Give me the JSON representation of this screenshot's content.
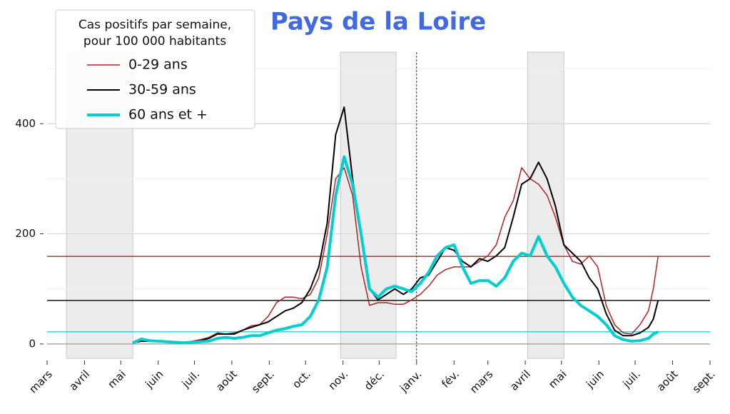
{
  "chart_data": {
    "type": "line",
    "title": "Pays de la Loire",
    "title_color": "#4169e1",
    "legend_title": [
      "Cas positifs par semaine,",
      "pour 100 000 habitants"
    ],
    "x": [
      71,
      78,
      85,
      92,
      99,
      106,
      113,
      120,
      127,
      134,
      141,
      148,
      155,
      162,
      169,
      176,
      183,
      190,
      197,
      204,
      211,
      218,
      225,
      232,
      239,
      246,
      253,
      260,
      267,
      274,
      281,
      288,
      295,
      302,
      309,
      316,
      323,
      330,
      337,
      344,
      351,
      358,
      365,
      372,
      379,
      386,
      393,
      400,
      407,
      414,
      421,
      428,
      435,
      442,
      449,
      456,
      463,
      470,
      477,
      484,
      491,
      498,
      502,
      506
    ],
    "series": [
      {
        "name": "0-29 ans",
        "color": "#b22222",
        "linewidth": 1.5,
        "values": [
          2,
          6,
          7,
          5,
          4,
          3,
          3,
          5,
          8,
          12,
          20,
          18,
          20,
          25,
          33,
          35,
          50,
          75,
          85,
          85,
          82,
          90,
          120,
          200,
          300,
          320,
          270,
          140,
          70,
          75,
          75,
          72,
          72,
          80,
          90,
          105,
          125,
          135,
          140,
          140,
          140,
          150,
          160,
          180,
          230,
          260,
          320,
          300,
          290,
          270,
          230,
          180,
          150,
          145,
          160,
          140,
          70,
          35,
          20,
          18,
          35,
          60,
          100,
          159
        ]
      },
      {
        "name": "30-59 ans",
        "color": "#000000",
        "linewidth": 2,
        "values": [
          2,
          5,
          5,
          4,
          4,
          3,
          2,
          4,
          6,
          10,
          18,
          18,
          18,
          25,
          30,
          35,
          40,
          50,
          60,
          65,
          75,
          100,
          140,
          220,
          380,
          430,
          300,
          200,
          100,
          80,
          90,
          100,
          90,
          100,
          120,
          125,
          150,
          175,
          170,
          150,
          140,
          155,
          150,
          160,
          175,
          230,
          290,
          300,
          330,
          300,
          250,
          180,
          165,
          150,
          120,
          100,
          55,
          25,
          15,
          15,
          20,
          30,
          45,
          79
        ]
      },
      {
        "name": "60 ans et +",
        "color": "#00ced1",
        "linewidth": 4,
        "values": [
          2,
          9,
          6,
          5,
          4,
          3,
          2,
          3,
          4,
          5,
          10,
          12,
          10,
          12,
          15,
          15,
          20,
          25,
          28,
          32,
          35,
          50,
          80,
          140,
          270,
          340,
          290,
          200,
          100,
          85,
          100,
          105,
          100,
          95,
          110,
          130,
          160,
          175,
          180,
          140,
          110,
          115,
          115,
          105,
          120,
          150,
          165,
          160,
          195,
          160,
          140,
          110,
          85,
          70,
          60,
          50,
          35,
          15,
          8,
          5,
          6,
          10,
          18,
          22
        ]
      }
    ],
    "xlim": [
      0,
      549
    ],
    "xticks": [
      {
        "value": 0,
        "label": "mars"
      },
      {
        "value": 31,
        "label": "avril"
      },
      {
        "value": 61,
        "label": "mai"
      },
      {
        "value": 92,
        "label": "juin"
      },
      {
        "value": 122,
        "label": "juil."
      },
      {
        "value": 153,
        "label": "août"
      },
      {
        "value": 184,
        "label": "sept."
      },
      {
        "value": 214,
        "label": "oct."
      },
      {
        "value": 245,
        "label": "nov."
      },
      {
        "value": 275,
        "label": "déc."
      },
      {
        "value": 306,
        "label": "janv."
      },
      {
        "value": 337,
        "label": "fév."
      },
      {
        "value": 365,
        "label": "mars"
      },
      {
        "value": 396,
        "label": "avril"
      },
      {
        "value": 426,
        "label": "mai"
      },
      {
        "value": 457,
        "label": "juin"
      },
      {
        "value": 487,
        "label": "juil."
      },
      {
        "value": 518,
        "label": "août"
      },
      {
        "value": 549,
        "label": "sept."
      }
    ],
    "ylim": [
      -30,
      530
    ],
    "yticks": [
      0,
      200,
      400
    ],
    "yticks_minor": [
      100,
      300,
      500
    ],
    "grid": true,
    "shaded_periods": [
      [
        16,
        71
      ],
      [
        243,
        289
      ],
      [
        398,
        428
      ]
    ],
    "vline": 306,
    "legend": "upper left"
  }
}
